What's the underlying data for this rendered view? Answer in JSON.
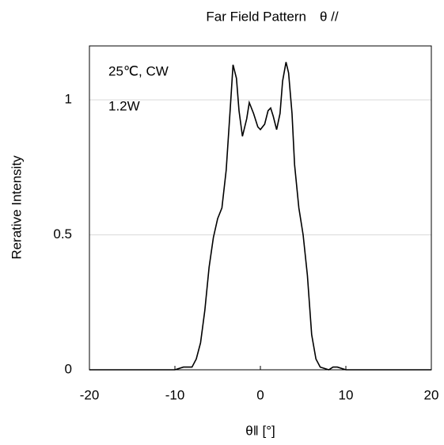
{
  "chart_data": {
    "type": "line",
    "title": "Far Field Pattern　θ //",
    "x_label": "θ‖ [°]",
    "y_label": "Rerative Intensity",
    "annotations": [
      "25℃, CW",
      "1.2W"
    ],
    "xlim": [
      -20,
      20
    ],
    "xticks": [
      -20,
      -10,
      0,
      10,
      20
    ],
    "ylim": [
      0,
      1.2
    ],
    "yticks": [
      0,
      0.5,
      1
    ],
    "grid": true,
    "series": [
      {
        "name": "1.2W",
        "color": "#000000",
        "x": [
          -20,
          -15,
          -10,
          -9,
          -8,
          -7.5,
          -7,
          -6.5,
          -6,
          -5.5,
          -5,
          -4.5,
          -4,
          -3.5,
          -3.2,
          -2.8,
          -2.5,
          -2.1,
          -1.6,
          -1.3,
          -0.8,
          -0.3,
          0,
          0.5,
          0.9,
          1.2,
          1.5,
          1.9,
          2.3,
          2.6,
          3,
          3.3,
          3.7,
          4,
          4.5,
          5,
          5.5,
          6,
          6.5,
          7,
          8,
          8.5,
          9,
          10,
          15,
          20
        ],
        "values": [
          0,
          0,
          0,
          0.01,
          0.01,
          0.04,
          0.1,
          0.22,
          0.38,
          0.49,
          0.56,
          0.6,
          0.74,
          0.98,
          1.13,
          1.08,
          0.96,
          0.865,
          0.93,
          0.99,
          0.95,
          0.9,
          0.89,
          0.91,
          0.96,
          0.97,
          0.94,
          0.89,
          0.95,
          1.07,
          1.14,
          1.1,
          0.95,
          0.76,
          0.6,
          0.5,
          0.35,
          0.13,
          0.04,
          0.01,
          0,
          0.01,
          0.01,
          0,
          0,
          0
        ]
      }
    ]
  }
}
